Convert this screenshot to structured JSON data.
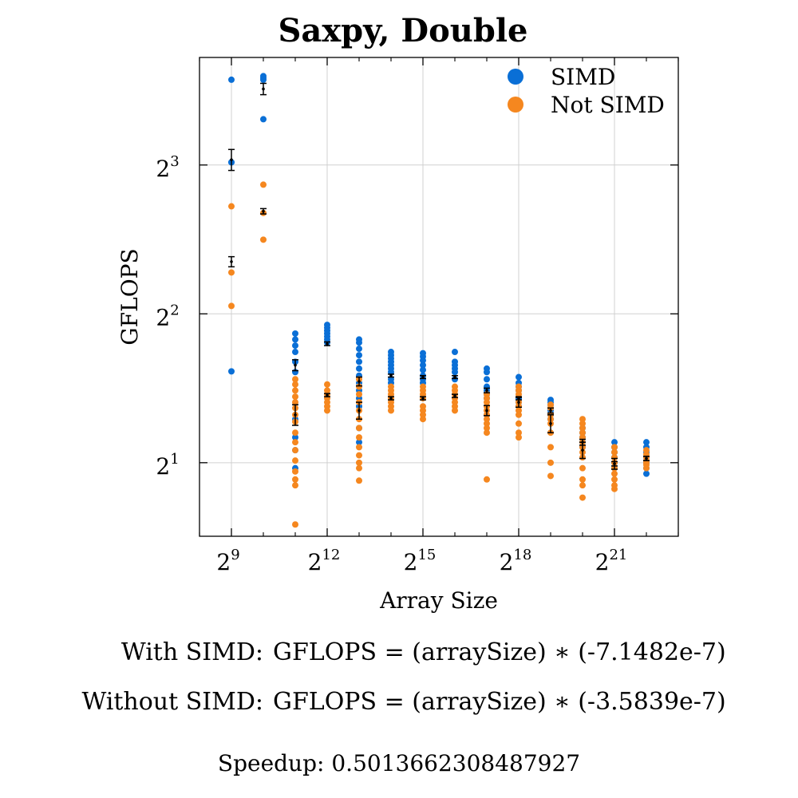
{
  "chart_data": {
    "type": "scatter",
    "title": "Saxpy, Double",
    "xlabel": "Array Size",
    "ylabel": "GFLOPS",
    "x_scale": "log2",
    "y_scale": "log2",
    "x_tick_exponents": [
      "9",
      "12",
      "15",
      "18",
      "21"
    ],
    "y_tick_exponents": [
      "1",
      "2",
      "3"
    ],
    "xlim": [
      256,
      8388608
    ],
    "ylim": [
      1.42,
      13.2
    ],
    "grid": true,
    "legend": "top-right",
    "x": [
      512,
      1024,
      2048,
      4096,
      8192,
      16384,
      32768,
      65536,
      131072,
      262144,
      524288,
      1048576,
      2097152,
      4194304
    ],
    "series": [
      {
        "name": "SIMD",
        "color": "#0a6fd6",
        "points": [
          [
            11.9,
            8.1,
            8.1,
            3.06
          ],
          [
            12.1,
            12.0,
            11.9,
            9.9
          ],
          [
            3.65,
            3.55,
            3.45,
            3.35,
            3.2,
            3.05,
            2.45,
            2.25,
            2.12,
            1.95
          ],
          [
            3.8,
            3.75,
            3.7,
            3.65,
            3.6,
            3.55,
            3.5
          ],
          [
            3.55,
            3.5,
            3.4,
            3.3,
            3.2,
            3.1,
            3.0,
            2.9,
            2.8,
            2.7,
            2.6,
            2.35,
            2.2
          ],
          [
            3.35,
            3.3,
            3.25,
            3.2,
            3.15,
            3.1,
            3.05,
            2.95,
            2.9
          ],
          [
            3.33,
            3.28,
            3.22,
            3.15,
            3.08,
            3.0,
            2.95,
            2.9
          ],
          [
            3.35,
            3.2,
            3.15,
            3.1,
            3.05,
            2.95
          ],
          [
            3.1,
            3.05,
            2.95,
            2.85,
            2.8,
            2.75,
            2.7
          ],
          [
            2.98,
            2.9,
            2.85,
            2.8,
            2.7,
            2.65,
            2.6
          ],
          [
            2.68,
            2.65,
            2.62,
            2.58,
            2.55,
            2.5,
            2.45
          ],
          [
            2.35,
            2.3,
            2.25,
            2.2,
            2.15
          ],
          [
            2.2,
            2.15,
            2.1,
            2.05,
            2.0,
            1.95
          ],
          [
            2.2,
            2.15,
            2.1,
            2.05,
            2.0,
            1.95,
            1.9
          ]
        ],
        "means": [
          8.2,
          11.4,
          3.15,
          3.48,
          2.92,
          3.0,
          2.98,
          2.98,
          2.8,
          2.7,
          2.55,
          2.2,
          1.99,
          2.04
        ],
        "errors": [
          0.4,
          0.3,
          0.08,
          0.03,
          0.06,
          0.02,
          0.02,
          0.02,
          0.03,
          0.02,
          0.03,
          0.03,
          0.02,
          0.02
        ]
      },
      {
        "name": "Not SIMD",
        "color": "#f5871f",
        "points": [
          [
            6.6,
            4.85,
            4.15
          ],
          [
            7.3,
            6.4,
            5.65
          ],
          [
            2.95,
            2.88,
            2.8,
            2.72,
            2.65,
            2.58,
            2.5,
            2.42,
            2.3,
            2.2,
            2.12,
            2.02,
            1.92,
            1.85,
            1.8,
            1.5
          ],
          [
            2.88,
            2.8,
            2.75,
            2.7,
            2.65,
            2.6,
            2.55
          ],
          [
            2.95,
            2.85,
            2.75,
            2.65,
            2.55,
            2.45,
            2.35,
            2.25,
            2.15,
            2.07,
            2.0,
            1.95,
            1.84
          ],
          [
            2.85,
            2.8,
            2.75,
            2.7,
            2.65,
            2.6,
            2.55
          ],
          [
            2.85,
            2.8,
            2.75,
            2.7,
            2.6,
            2.55,
            2.5,
            2.45
          ],
          [
            2.85,
            2.8,
            2.75,
            2.7,
            2.65,
            2.6,
            2.55
          ],
          [
            2.75,
            2.7,
            2.65,
            2.6,
            2.55,
            2.5,
            2.45,
            2.4,
            2.35,
            2.3,
            1.85
          ],
          [
            2.85,
            2.8,
            2.75,
            2.65,
            2.6,
            2.55,
            2.5,
            2.4,
            2.3,
            2.25
          ],
          [
            2.62,
            2.58,
            2.5,
            2.45,
            2.4,
            2.3,
            2.15,
            2.0,
            1.88
          ],
          [
            2.45,
            2.4,
            2.35,
            2.3,
            2.25,
            2.2,
            2.15,
            2.1,
            2.05,
            1.95,
            1.85,
            1.8,
            1.7
          ],
          [
            2.15,
            2.1,
            2.05,
            2.0,
            1.95,
            1.9,
            1.85,
            1.8,
            1.77
          ],
          [
            2.12,
            2.08,
            2.05,
            2.02,
            2.0,
            1.98,
            1.95
          ]
        ],
        "means": [
          5.1,
          6.45,
          2.5,
          2.74,
          2.55,
          2.7,
          2.7,
          2.73,
          2.55,
          2.65,
          2.4,
          2.12,
          1.99,
          2.04
        ],
        "errors": [
          0.12,
          0.08,
          0.12,
          0.02,
          0.1,
          0.02,
          0.02,
          0.02,
          0.06,
          0.06,
          0.1,
          0.08,
          0.05,
          0.02
        ]
      }
    ]
  },
  "equations": {
    "simd_label": "With SIMD:",
    "simd_formula": "GFLOPS = (arraySize) ∗ (-7.1482e-7)",
    "nosimd_label": "Without SIMD:",
    "nosimd_formula": "GFLOPS = (arraySize) ∗ (-3.5839e-7)"
  },
  "speedup": "Speedup: 0.5013662308487927"
}
